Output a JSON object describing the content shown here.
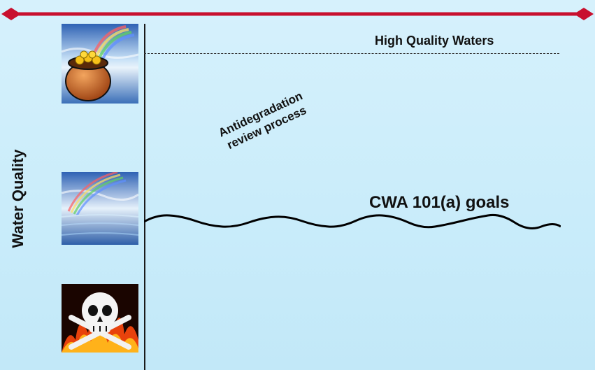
{
  "diagram": {
    "axis_title": "Water Quality",
    "levels": [
      {
        "label": "High Quality Waters",
        "icon": "pot-of-gold-rainbow-icon"
      },
      {
        "label": "CWA 101(a) goals",
        "icon": "rainbow-ocean-icon"
      },
      {
        "label": "",
        "icon": "skull-flames-icon"
      }
    ],
    "process": {
      "line1": "Antidegradation",
      "line2": "review process"
    }
  },
  "colors": {
    "background": "#cfeefb",
    "top_rule": "#c8102e",
    "text": "#111111"
  }
}
